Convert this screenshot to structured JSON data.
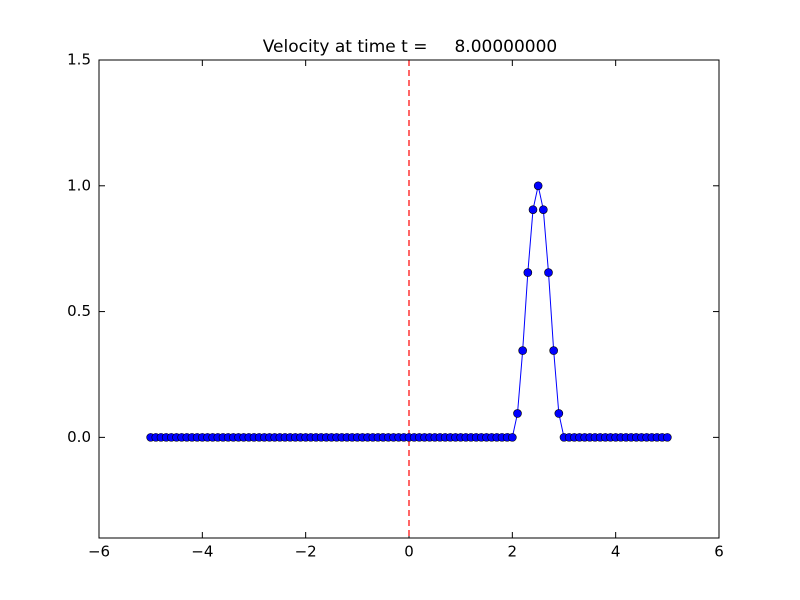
{
  "chart_data": {
    "type": "line",
    "title": "Velocity at time t =     8.00000000",
    "x": [
      -5.0,
      -4.9,
      -4.8,
      -4.7,
      -4.6,
      -4.5,
      -4.4,
      -4.3,
      -4.2,
      -4.1,
      -4.0,
      -3.9,
      -3.8,
      -3.7,
      -3.6,
      -3.5,
      -3.4,
      -3.3,
      -3.2,
      -3.1,
      -3.0,
      -2.9,
      -2.8,
      -2.7,
      -2.6,
      -2.5,
      -2.4,
      -2.3,
      -2.2,
      -2.1,
      -2.0,
      -1.9,
      -1.8,
      -1.7,
      -1.6,
      -1.5,
      -1.4,
      -1.3,
      -1.2,
      -1.1,
      -1.0,
      -0.9,
      -0.8,
      -0.7,
      -0.6,
      -0.5,
      -0.4,
      -0.3,
      -0.2,
      -0.1,
      0.0,
      0.1,
      0.2,
      0.3,
      0.4,
      0.5,
      0.6,
      0.7,
      0.8,
      0.9,
      1.0,
      1.1,
      1.2,
      1.3,
      1.4,
      1.5,
      1.6,
      1.7,
      1.8,
      1.9,
      2.0,
      2.1,
      2.2,
      2.3,
      2.4,
      2.5,
      2.6,
      2.7,
      2.8,
      2.9,
      3.0,
      3.1,
      3.2,
      3.3,
      3.4,
      3.5,
      3.6,
      3.7,
      3.8,
      3.9,
      4.0,
      4.1,
      4.2,
      4.3,
      4.4,
      4.5,
      4.6,
      4.7,
      4.8,
      4.9,
      5.0
    ],
    "series": [
      {
        "color": "#0000ff",
        "marker_edge": "#000000",
        "values": [
          0,
          0,
          0,
          0,
          0,
          0,
          0,
          0,
          0,
          0,
          0,
          0,
          0,
          0,
          0,
          0,
          0,
          0,
          0,
          0,
          0,
          0,
          0,
          0,
          0,
          0,
          0,
          0,
          0,
          0,
          0,
          0,
          0,
          0,
          0,
          0,
          0,
          0,
          0,
          0,
          0,
          0,
          0,
          0,
          0,
          0,
          0,
          0,
          0,
          0,
          0,
          0,
          0,
          0,
          0,
          0,
          0,
          0,
          0,
          0,
          0,
          0,
          0,
          0,
          0,
          0,
          0,
          0,
          0,
          0,
          0,
          0.095,
          0.345,
          0.655,
          0.905,
          1.0,
          0.905,
          0.655,
          0.345,
          0.095,
          0,
          0,
          0,
          0,
          0,
          0,
          0,
          0,
          0,
          0,
          0,
          0,
          0,
          0,
          0,
          0,
          0,
          0,
          0,
          0,
          0
        ]
      }
    ],
    "xlim": [
      -6,
      6
    ],
    "ylim": [
      -0.4,
      1.5
    ],
    "xticks": [
      {
        "value": -6,
        "label": "−6"
      },
      {
        "value": -4,
        "label": "−4"
      },
      {
        "value": -2,
        "label": "−2"
      },
      0,
      2,
      4,
      6
    ],
    "yticks": [
      {
        "value": 0,
        "label": "0.0"
      },
      {
        "value": 0.5,
        "label": "0.5"
      },
      {
        "value": 1,
        "label": "1.0"
      },
      {
        "value": 1.5,
        "label": "1.5"
      }
    ],
    "vline": {
      "x": 0,
      "color": "#ff0000"
    }
  }
}
